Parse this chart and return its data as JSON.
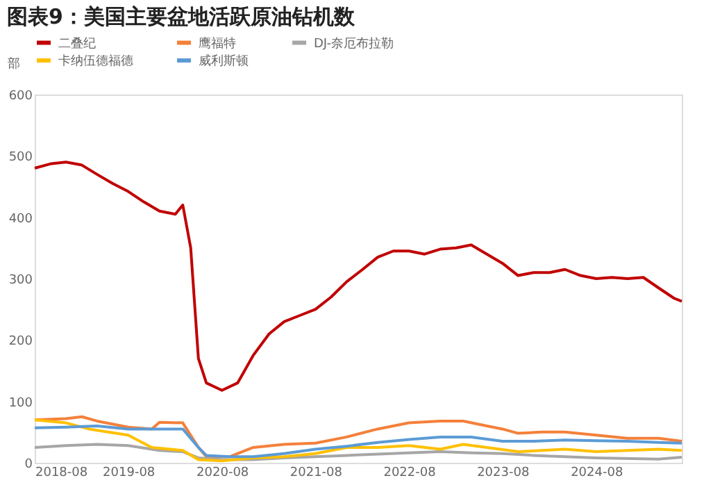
{
  "chart_data": {
    "type": "line",
    "title": "图表9：美国主要盆地活跃原油钻机数",
    "ylabel": "部",
    "xlim": [
      "2018-08",
      "2025-07"
    ],
    "xticks": [
      "2018-08",
      "2019-08",
      "2020-08",
      "2021-08",
      "2022-08",
      "2023-08",
      "2024-08"
    ],
    "ylim": [
      0,
      600
    ],
    "yticks": [
      0,
      100,
      200,
      300,
      400,
      500,
      600
    ],
    "grid": false,
    "legend": "top",
    "line_style": "solid",
    "marker": "none",
    "series": [
      {
        "name": "二叠纪",
        "color": "#c00000",
        "x": [
          "2018-08",
          "2018-10",
          "2018-12",
          "2019-02",
          "2019-04",
          "2019-06",
          "2019-08",
          "2019-10",
          "2019-12",
          "2020-02",
          "2020-03",
          "2020-04",
          "2020-05",
          "2020-06",
          "2020-08",
          "2020-10",
          "2020-12",
          "2021-02",
          "2021-04",
          "2021-06",
          "2021-08",
          "2021-10",
          "2021-12",
          "2022-02",
          "2022-04",
          "2022-06",
          "2022-08",
          "2022-10",
          "2022-12",
          "2023-02",
          "2023-04",
          "2023-06",
          "2023-08",
          "2023-10",
          "2023-12",
          "2024-02",
          "2024-04",
          "2024-06",
          "2024-08",
          "2024-10",
          "2024-12",
          "2025-02",
          "2025-04",
          "2025-06",
          "2025-07"
        ],
        "values": [
          480,
          487,
          490,
          485,
          470,
          455,
          442,
          425,
          410,
          405,
          420,
          350,
          170,
          130,
          118,
          130,
          175,
          210,
          230,
          240,
          250,
          270,
          295,
          315,
          335,
          345,
          345,
          340,
          348,
          350,
          355,
          340,
          325,
          305,
          310,
          310,
          315,
          305,
          300,
          302,
          300,
          302,
          285,
          268,
          263
        ]
      },
      {
        "name": "鹰福特",
        "color": "#f4803a",
        "x": [
          "2018-08",
          "2018-12",
          "2019-02",
          "2019-04",
          "2019-08",
          "2019-11",
          "2019-12",
          "2020-03",
          "2020-05",
          "2020-06",
          "2020-09",
          "2020-12",
          "2021-04",
          "2021-08",
          "2021-12",
          "2022-04",
          "2022-08",
          "2022-12",
          "2023-03",
          "2023-06",
          "2023-08",
          "2023-10",
          "2024-01",
          "2024-04",
          "2024-08",
          "2024-12",
          "2025-04",
          "2025-07"
        ],
        "values": [
          70,
          72,
          75,
          68,
          58,
          55,
          66,
          65,
          25,
          10,
          10,
          25,
          30,
          32,
          42,
          55,
          65,
          68,
          68,
          60,
          55,
          48,
          50,
          50,
          45,
          40,
          40,
          35
        ]
      },
      {
        "name": "DJ-奈厄布拉勒",
        "color": "#a6a6a6",
        "x": [
          "2018-08",
          "2018-12",
          "2019-04",
          "2019-08",
          "2019-12",
          "2020-03",
          "2020-05",
          "2020-08",
          "2020-12",
          "2021-04",
          "2021-08",
          "2021-12",
          "2022-08",
          "2022-12",
          "2023-04",
          "2023-08",
          "2023-12",
          "2024-08",
          "2025-04",
          "2025-07"
        ],
        "values": [
          25,
          28,
          30,
          28,
          20,
          18,
          8,
          5,
          5,
          8,
          10,
          12,
          16,
          18,
          16,
          15,
          12,
          8,
          6,
          9
        ]
      },
      {
        "name": "卡纳伍德福德",
        "color": "#ffc000",
        "x": [
          "2018-08",
          "2018-12",
          "2019-03",
          "2019-08",
          "2019-11",
          "2020-03",
          "2020-05",
          "2020-08",
          "2020-12",
          "2021-04",
          "2021-08",
          "2021-12",
          "2022-04",
          "2022-08",
          "2022-12",
          "2023-03",
          "2023-06",
          "2023-10",
          "2024-01",
          "2024-04",
          "2024-08",
          "2024-12",
          "2025-04",
          "2025-07"
        ],
        "values": [
          70,
          65,
          55,
          45,
          25,
          20,
          5,
          3,
          8,
          10,
          15,
          25,
          25,
          28,
          22,
          30,
          25,
          18,
          20,
          22,
          18,
          20,
          22,
          20
        ]
      },
      {
        "name": "威利斯顿",
        "color": "#5b9bd5",
        "x": [
          "2018-08",
          "2018-12",
          "2019-04",
          "2019-08",
          "2019-12",
          "2020-03",
          "2020-05",
          "2020-06",
          "2020-09",
          "2020-12",
          "2021-04",
          "2021-08",
          "2021-12",
          "2022-04",
          "2022-08",
          "2022-12",
          "2023-04",
          "2023-08",
          "2023-12",
          "2024-04",
          "2024-08",
          "2024-12",
          "2025-04",
          "2025-07"
        ],
        "values": [
          57,
          58,
          60,
          55,
          55,
          55,
          25,
          12,
          10,
          10,
          15,
          22,
          27,
          33,
          38,
          42,
          42,
          35,
          35,
          37,
          36,
          35,
          33,
          32
        ]
      }
    ]
  }
}
